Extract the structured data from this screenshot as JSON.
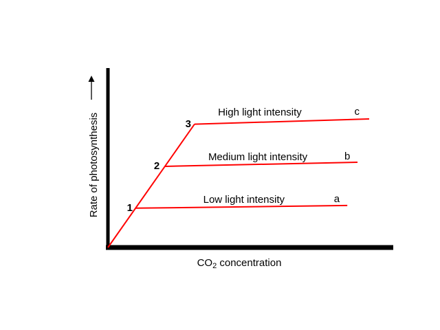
{
  "chart_data": {
    "type": "line",
    "title": "",
    "xlabel": "CO2 concentration",
    "xlabel_parts": {
      "pre": "CO",
      "sub": "2",
      "post": " concentration"
    },
    "ylabel": "Rate of photosynthesis",
    "axis_range": {
      "x": [
        0,
        100
      ],
      "y": [
        0,
        100
      ]
    },
    "grid": false,
    "legend": "inline-labels",
    "line_color": "#ff0000",
    "axis_color": "#000000",
    "diagonal": {
      "name": "rising-limb",
      "points": [
        [
          0,
          0
        ],
        [
          30.5,
          69.0
        ]
      ]
    },
    "series": [
      {
        "name": "Low light intensity",
        "letter": "a",
        "number": "1",
        "points": [
          [
            9.7,
            22.0
          ],
          [
            84.3,
            23.5
          ]
        ],
        "name_pos": [
          47.9,
          25.0
        ],
        "letter_pos": [
          80.6,
          25.4
        ],
        "number_pos": [
          8.7,
          20.4
        ]
      },
      {
        "name": "Medium light intensity",
        "letter": "b",
        "number": "2",
        "points": [
          [
            20.1,
            45.4
          ],
          [
            87.9,
            47.7
          ]
        ],
        "name_pos": [
          52.8,
          48.8
        ],
        "letter_pos": [
          84.3,
          49.2
        ],
        "number_pos": [
          18.2,
          43.8
        ]
      },
      {
        "name": "High light intensity",
        "letter": "c",
        "number": "3",
        "points": [
          [
            30.5,
            69.0
          ],
          [
            92.0,
            71.9
          ]
        ],
        "name_pos": [
          53.5,
          73.8
        ],
        "letter_pos": [
          87.7,
          74.2
        ],
        "number_pos": [
          29.3,
          67.3
        ]
      }
    ]
  }
}
